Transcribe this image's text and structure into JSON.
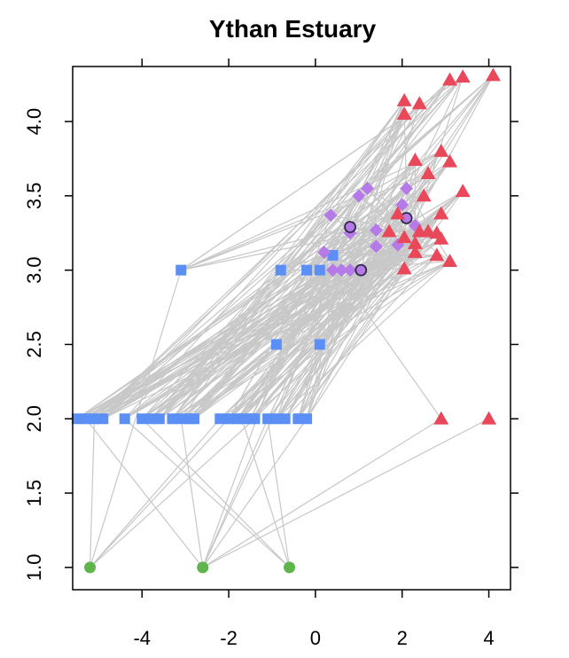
{
  "chart_data": {
    "type": "scatter",
    "title": "Ythan Estuary",
    "xlabel": "",
    "ylabel": "",
    "xlim": [
      -5.6,
      4.5
    ],
    "ylim": [
      0.85,
      4.37
    ],
    "x_ticks": [
      -4,
      -2,
      0,
      2,
      4
    ],
    "y_ticks": [
      1.0,
      1.5,
      2.0,
      2.5,
      3.0,
      3.5,
      4.0
    ],
    "x_tick_labels": [
      "-4",
      "-2",
      "0",
      "2",
      "4"
    ],
    "y_tick_labels": [
      "1.0",
      "1.5",
      "2.0",
      "2.5",
      "3.0",
      "3.5",
      "4.0"
    ],
    "grid": false,
    "edge_color": "#c8c8c8",
    "series": [
      {
        "marker": "circle",
        "color": "#5db54b",
        "points": [
          [
            -5.2,
            1.0
          ],
          [
            -2.6,
            1.0
          ],
          [
            -0.6,
            1.0
          ]
        ]
      },
      {
        "marker": "square",
        "color": "#5b8ff5",
        "points": [
          [
            -5.5,
            2.0
          ],
          [
            -5.3,
            2.0
          ],
          [
            -5.1,
            2.0
          ],
          [
            -4.9,
            2.0
          ],
          [
            -4.4,
            2.0
          ],
          [
            -4.0,
            2.0
          ],
          [
            -3.8,
            2.0
          ],
          [
            -3.6,
            2.0
          ],
          [
            -3.3,
            2.0
          ],
          [
            -3.1,
            2.0
          ],
          [
            -2.9,
            2.0
          ],
          [
            -2.8,
            2.0
          ],
          [
            -2.2,
            2.0
          ],
          [
            -2.0,
            2.0
          ],
          [
            -1.8,
            2.0
          ],
          [
            -1.7,
            2.0
          ],
          [
            -1.5,
            2.0
          ],
          [
            -1.4,
            2.0
          ],
          [
            -1.1,
            2.0
          ],
          [
            -0.9,
            2.0
          ],
          [
            -0.7,
            2.0
          ],
          [
            -0.4,
            2.0
          ],
          [
            -0.2,
            2.0
          ],
          [
            -3.1,
            3.0
          ],
          [
            -0.8,
            3.0
          ],
          [
            -0.2,
            3.0
          ],
          [
            0.1,
            3.0
          ],
          [
            0.4,
            3.1
          ],
          [
            -0.9,
            2.5
          ],
          [
            0.1,
            2.5
          ]
        ]
      },
      {
        "marker": "diamond",
        "color": "#b57ae8",
        "points": [
          [
            1.0,
            3.5
          ],
          [
            1.2,
            3.55
          ],
          [
            0.35,
            3.37
          ],
          [
            0.2,
            3.12
          ],
          [
            0.4,
            3.0
          ],
          [
            0.6,
            3.0
          ],
          [
            0.8,
            3.0
          ],
          [
            0.8,
            3.25
          ],
          [
            1.4,
            3.27
          ],
          [
            1.4,
            3.16
          ],
          [
            1.9,
            3.17
          ],
          [
            2.0,
            3.44
          ],
          [
            2.1,
            3.55
          ],
          [
            2.3,
            3.3
          ]
        ]
      },
      {
        "marker": "ring",
        "color": "#b57ae8",
        "stroke": "#302a4a",
        "points": [
          [
            0.8,
            3.29
          ],
          [
            1.05,
            3.0
          ],
          [
            2.1,
            3.35
          ]
        ]
      },
      {
        "marker": "triangle",
        "color": "#e8485a",
        "points": [
          [
            3.1,
            4.28
          ],
          [
            3.4,
            4.3
          ],
          [
            4.1,
            4.31
          ],
          [
            2.05,
            4.14
          ],
          [
            2.4,
            4.12
          ],
          [
            2.05,
            4.05
          ],
          [
            2.3,
            3.74
          ],
          [
            2.9,
            3.8
          ],
          [
            3.1,
            3.73
          ],
          [
            2.6,
            3.65
          ],
          [
            2.5,
            3.5
          ],
          [
            3.4,
            3.53
          ],
          [
            2.9,
            3.38
          ],
          [
            1.9,
            3.38
          ],
          [
            1.7,
            3.26
          ],
          [
            2.05,
            3.22
          ],
          [
            2.4,
            3.26
          ],
          [
            2.3,
            3.18
          ],
          [
            2.6,
            3.26
          ],
          [
            2.9,
            3.21
          ],
          [
            2.8,
            3.25
          ],
          [
            2.3,
            3.12
          ],
          [
            2.05,
            3.01
          ],
          [
            2.8,
            3.1
          ],
          [
            3.1,
            3.06
          ],
          [
            2.9,
            2.0
          ],
          [
            4.0,
            2.0
          ]
        ]
      }
    ]
  }
}
